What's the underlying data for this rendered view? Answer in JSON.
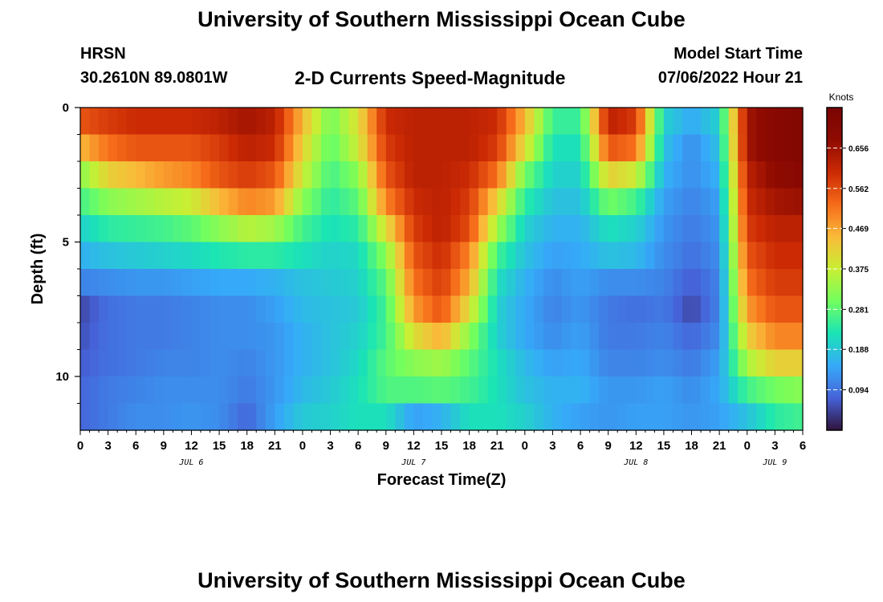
{
  "header": {
    "title": "University of Southern Mississippi Ocean Cube",
    "station": "HRSN",
    "coords": "30.2610N  89.0801W",
    "plot_title": "2-D Currents Speed-Magnitude",
    "model_start_label": "Model Start Time",
    "model_start_value": "07/06/2022 Hour 21"
  },
  "footer": {
    "title": "University of Southern Mississippi Ocean Cube"
  },
  "colors": {
    "background": "#ffffff",
    "axis": "#000000"
  },
  "chart_data": {
    "type": "heatmap",
    "title": "2-D Currents Speed-Magnitude",
    "xlabel": "Forecast Time(Z)",
    "ylabel": "Depth (ft)",
    "units": "Knots",
    "x_tick_labels": [
      "0",
      "3",
      "6",
      "9",
      "12",
      "15",
      "18",
      "21",
      "0",
      "3",
      "6",
      "9",
      "12",
      "15",
      "18",
      "21",
      "0",
      "3",
      "6",
      "9",
      "12",
      "15",
      "18",
      "21",
      "0",
      "3",
      "6"
    ],
    "date_labels": [
      {
        "text": "JUL 6",
        "hour": 12
      },
      {
        "text": "JUL 7",
        "hour": 36
      },
      {
        "text": "JUL 8",
        "hour": 60
      },
      {
        "text": "JUL 9",
        "hour": 75
      }
    ],
    "xlim": [
      0,
      78
    ],
    "y_tick_labels": [
      "0",
      "5",
      "10"
    ],
    "y_tick_values": [
      0,
      5,
      10
    ],
    "ylim": [
      0,
      12
    ],
    "colorbar": {
      "label": "Knots",
      "ticks": [
        0.094,
        0.188,
        0.281,
        0.375,
        0.469,
        0.562,
        0.656
      ],
      "tick_labels": [
        "0.094",
        "0.188",
        "0.281",
        "0.375",
        "0.469",
        "0.562",
        "0.656"
      ],
      "range": [
        0.0,
        0.75
      ],
      "colormap": "turbo"
    },
    "grid_x_hours": [
      0,
      3,
      6,
      9,
      12,
      15,
      18,
      21,
      24,
      27,
      30,
      33,
      36,
      39,
      42,
      45,
      48,
      51,
      54,
      57,
      60,
      63,
      66,
      69,
      72,
      75,
      78
    ],
    "grid_y_depths": [
      0.5,
      1.5,
      2.5,
      3.5,
      4.5,
      5.5,
      6.5,
      7.5,
      8.5,
      9.5,
      10.5,
      11.5
    ],
    "speed_knots": [
      [
        0.55,
        0.58,
        0.6,
        0.6,
        0.6,
        0.62,
        0.65,
        0.62,
        0.45,
        0.3,
        0.4,
        0.6,
        0.62,
        0.62,
        0.62,
        0.6,
        0.45,
        0.25,
        0.25,
        0.62,
        0.58,
        0.2,
        0.15,
        0.2,
        0.65,
        0.7,
        0.72
      ],
      [
        0.45,
        0.52,
        0.55,
        0.55,
        0.55,
        0.58,
        0.62,
        0.6,
        0.42,
        0.28,
        0.38,
        0.58,
        0.62,
        0.62,
        0.62,
        0.58,
        0.4,
        0.22,
        0.22,
        0.55,
        0.52,
        0.18,
        0.12,
        0.18,
        0.65,
        0.7,
        0.72
      ],
      [
        0.32,
        0.42,
        0.45,
        0.48,
        0.5,
        0.55,
        0.58,
        0.55,
        0.38,
        0.26,
        0.32,
        0.55,
        0.62,
        0.62,
        0.6,
        0.52,
        0.3,
        0.2,
        0.2,
        0.42,
        0.38,
        0.16,
        0.12,
        0.16,
        0.62,
        0.68,
        0.7
      ],
      [
        0.26,
        0.32,
        0.34,
        0.36,
        0.38,
        0.45,
        0.5,
        0.48,
        0.32,
        0.24,
        0.28,
        0.5,
        0.6,
        0.62,
        0.58,
        0.42,
        0.24,
        0.18,
        0.18,
        0.3,
        0.26,
        0.14,
        0.11,
        0.14,
        0.6,
        0.65,
        0.66
      ],
      [
        0.2,
        0.24,
        0.25,
        0.26,
        0.28,
        0.32,
        0.36,
        0.34,
        0.26,
        0.22,
        0.24,
        0.4,
        0.58,
        0.62,
        0.56,
        0.34,
        0.2,
        0.16,
        0.16,
        0.22,
        0.2,
        0.13,
        0.1,
        0.13,
        0.58,
        0.62,
        0.62
      ],
      [
        0.16,
        0.18,
        0.19,
        0.2,
        0.21,
        0.23,
        0.24,
        0.24,
        0.22,
        0.2,
        0.21,
        0.32,
        0.55,
        0.6,
        0.5,
        0.26,
        0.18,
        0.14,
        0.15,
        0.18,
        0.17,
        0.12,
        0.09,
        0.12,
        0.55,
        0.6,
        0.6
      ],
      [
        0.11,
        0.12,
        0.13,
        0.13,
        0.14,
        0.15,
        0.15,
        0.16,
        0.18,
        0.19,
        0.2,
        0.28,
        0.52,
        0.58,
        0.46,
        0.22,
        0.16,
        0.12,
        0.14,
        0.12,
        0.12,
        0.11,
        0.07,
        0.11,
        0.52,
        0.58,
        0.58
      ],
      [
        0.05,
        0.09,
        0.1,
        0.1,
        0.11,
        0.12,
        0.12,
        0.14,
        0.17,
        0.18,
        0.19,
        0.26,
        0.48,
        0.55,
        0.4,
        0.2,
        0.15,
        0.11,
        0.13,
        0.1,
        0.09,
        0.1,
        0.05,
        0.11,
        0.48,
        0.55,
        0.55
      ],
      [
        0.06,
        0.09,
        0.1,
        0.1,
        0.11,
        0.12,
        0.12,
        0.13,
        0.16,
        0.18,
        0.2,
        0.26,
        0.4,
        0.46,
        0.32,
        0.2,
        0.15,
        0.12,
        0.14,
        0.1,
        0.1,
        0.11,
        0.08,
        0.12,
        0.42,
        0.5,
        0.5
      ],
      [
        0.07,
        0.09,
        0.1,
        0.11,
        0.11,
        0.12,
        0.11,
        0.13,
        0.16,
        0.18,
        0.21,
        0.28,
        0.32,
        0.34,
        0.28,
        0.22,
        0.17,
        0.14,
        0.15,
        0.11,
        0.11,
        0.12,
        0.1,
        0.14,
        0.35,
        0.42,
        0.42
      ],
      [
        0.08,
        0.1,
        0.11,
        0.12,
        0.12,
        0.12,
        0.1,
        0.13,
        0.17,
        0.19,
        0.22,
        0.27,
        0.27,
        0.28,
        0.26,
        0.22,
        0.18,
        0.16,
        0.16,
        0.13,
        0.13,
        0.14,
        0.12,
        0.15,
        0.26,
        0.3,
        0.32
      ],
      [
        0.08,
        0.1,
        0.12,
        0.12,
        0.13,
        0.12,
        0.08,
        0.14,
        0.19,
        0.2,
        0.22,
        0.22,
        0.14,
        0.16,
        0.22,
        0.22,
        0.2,
        0.16,
        0.14,
        0.13,
        0.14,
        0.14,
        0.13,
        0.14,
        0.18,
        0.24,
        0.26
      ]
    ]
  }
}
